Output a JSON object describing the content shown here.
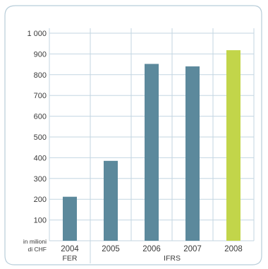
{
  "chart_data": {
    "type": "bar",
    "categories": [
      "2004",
      "2005",
      "2006",
      "2007",
      "2008"
    ],
    "values": [
      212,
      385,
      852,
      840,
      918
    ],
    "ylim": [
      0,
      1000
    ],
    "yticks": [
      100,
      200,
      300,
      400,
      500,
      600,
      700,
      800,
      900,
      1000
    ],
    "ytick_labels": [
      "100",
      "200",
      "300",
      "400",
      "500",
      "600",
      "700",
      "800",
      "900",
      "1 000"
    ],
    "unit_label_line1": "in milioni",
    "unit_label_line2": "di CHF",
    "groups": [
      {
        "label": "FER",
        "categories": [
          "2004"
        ]
      },
      {
        "label": "IFRS",
        "categories": [
          "2005",
          "2006",
          "2007",
          "2008"
        ]
      }
    ],
    "highlight_category": "2008",
    "grid": true,
    "colors": {
      "bar": "#5c899c",
      "highlight": "#c2d54a",
      "grid": "#c3d6e2",
      "frame": "#b8cdd9"
    }
  }
}
